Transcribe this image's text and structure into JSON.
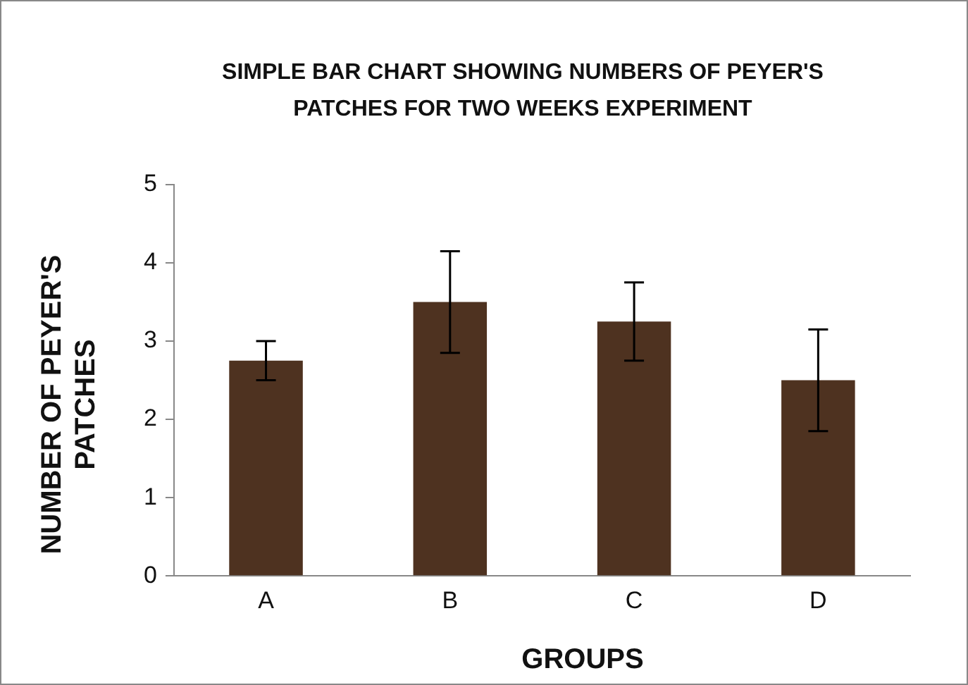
{
  "chart_data": {
    "type": "bar",
    "title": "SIMPLE BAR CHART SHOWING NUMBERS OF PEYER'S PATCHES FOR TWO WEEKS EXPERIMENT",
    "xlabel": "GROUPS",
    "ylabel": "NUMBER OF PEYER'S PATCHES",
    "categories": [
      "A",
      "B",
      "C",
      "D"
    ],
    "values": [
      2.75,
      3.5,
      3.25,
      2.5
    ],
    "errors": [
      0.25,
      0.65,
      0.5,
      0.65
    ],
    "color": "#4e3220",
    "ylim": [
      0,
      5
    ],
    "yticks": [
      0,
      1,
      2,
      3,
      4,
      5
    ],
    "grid": false,
    "legend": false
  }
}
